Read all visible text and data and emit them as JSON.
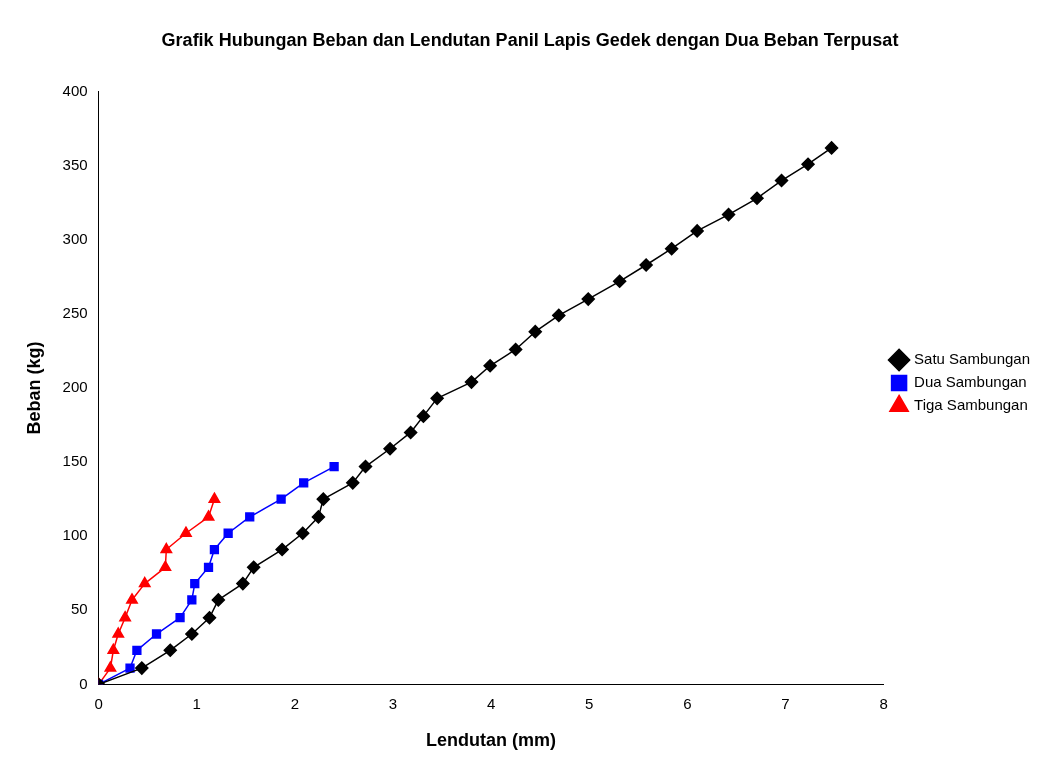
{
  "chart_data": {
    "type": "line",
    "title": "Grafik Hubungan Beban dan Lendutan Panil Lapis Gedek dengan Dua Beban Terpusat",
    "xlabel": "Lendutan (mm)",
    "ylabel": "Beban (kg)",
    "xlim": [
      0,
      8
    ],
    "xticks": [
      0,
      1,
      2,
      3,
      4,
      5,
      6,
      7,
      8
    ],
    "ylim": [
      0,
      400
    ],
    "yticks": [
      0,
      50,
      100,
      150,
      200,
      250,
      300,
      350,
      400
    ],
    "grid": false,
    "legend": "right",
    "series": [
      {
        "name": "Satu Sambungan",
        "color": "#000000",
        "marker": "diamond",
        "x": [
          0,
          0.44,
          0.73,
          0.95,
          1.13,
          1.22,
          1.47,
          1.58,
          1.87,
          2.08,
          2.24,
          2.29,
          2.59,
          2.72,
          2.97,
          3.18,
          3.31,
          3.45,
          3.8,
          3.99,
          4.25,
          4.45,
          4.69,
          4.99,
          5.31,
          5.58,
          5.84,
          6.1,
          6.42,
          6.71,
          6.96,
          7.23,
          7.47
        ],
        "values": [
          0,
          11,
          23,
          34,
          45,
          57,
          68,
          79,
          91,
          102,
          113,
          125,
          136,
          147,
          159,
          170,
          181,
          193,
          204,
          215,
          226,
          238,
          249,
          260,
          272,
          283,
          294,
          306,
          317,
          328,
          340,
          351,
          362
        ]
      },
      {
        "name": "Dua Sambungan",
        "color": "#0000ff",
        "marker": "square",
        "x": [
          0,
          0.32,
          0.39,
          0.59,
          0.83,
          0.95,
          0.98,
          1.12,
          1.18,
          1.32,
          1.54,
          1.86,
          2.09,
          2.4
        ],
        "values": [
          0,
          11,
          23,
          34,
          45,
          57,
          68,
          79,
          91,
          102,
          113,
          125,
          136,
          147
        ]
      },
      {
        "name": "Tiga Sambungan",
        "color": "#ff0000",
        "marker": "triangle",
        "x": [
          0,
          0.12,
          0.15,
          0.2,
          0.27,
          0.34,
          0.47,
          0.68,
          0.69,
          0.89,
          1.12,
          1.18
        ],
        "values": [
          0,
          11,
          23,
          34,
          45,
          57,
          68,
          79,
          91,
          102,
          113,
          125
        ]
      }
    ]
  }
}
